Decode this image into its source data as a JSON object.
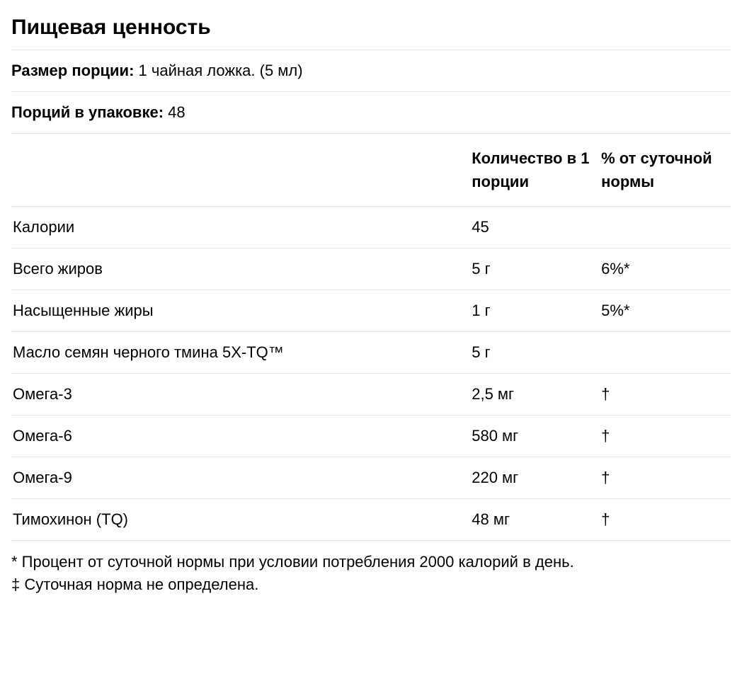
{
  "title": "Пищевая ценность",
  "serving_size": {
    "label": "Размер порции:",
    "value": "1 чайная ложка. (5 мл)"
  },
  "servings_per_container": {
    "label": "Порций в упаковке:",
    "value": "48"
  },
  "table": {
    "headers": {
      "name": "",
      "amount": "Количество в 1 порции",
      "dv": "% от суточной нормы"
    },
    "rows": [
      {
        "name": "Калории",
        "amount": "45",
        "dv": ""
      },
      {
        "name": "Всего жиров",
        "amount": "5 г",
        "dv": "6%*"
      },
      {
        "name": "Насыщенные жиры",
        "amount": "1 г",
        "dv": "5%*"
      },
      {
        "name": "Масло семян черного тмина 5X-TQ™",
        "amount": "5 г",
        "dv": ""
      },
      {
        "name": "Омега-3",
        "amount": "2,5 мг",
        "dv": "†"
      },
      {
        "name": "Омега-6",
        "amount": "580 мг",
        "dv": "†"
      },
      {
        "name": "Омега-9",
        "amount": "220 мг",
        "dv": "†"
      },
      {
        "name": "Тимохинон (TQ)",
        "amount": "48 мг",
        "dv": "†"
      }
    ]
  },
  "footnotes": {
    "line1": "* Процент от суточной нормы при условии потребления 2000 калорий в день.",
    "line2": "‡ Суточная норма не определена."
  },
  "styling": {
    "background_color": "#ffffff",
    "text_color": "#000000",
    "border_color": "#e5e5e5",
    "title_fontsize": 30,
    "body_fontsize": 22,
    "title_fontweight": 700,
    "label_fontweight": 700,
    "value_fontweight": 400,
    "column_widths_pct": [
      64,
      18,
      18
    ]
  }
}
